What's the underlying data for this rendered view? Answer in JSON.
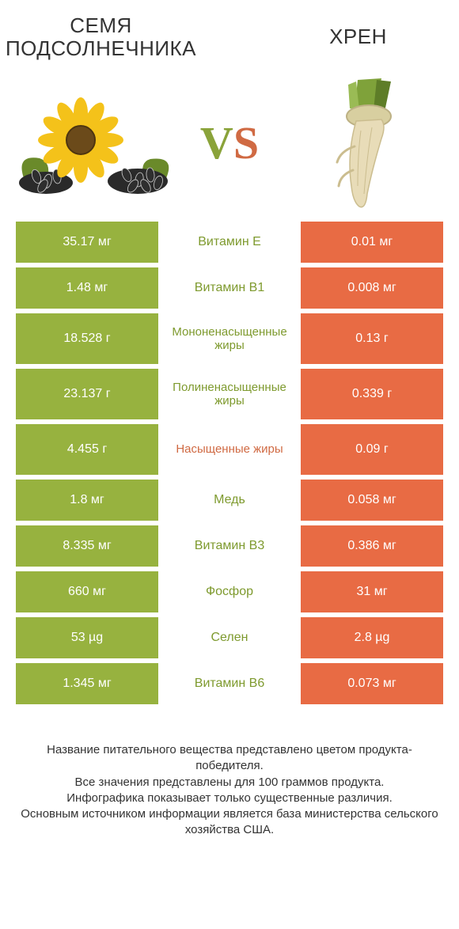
{
  "colors": {
    "green": "#97b23f",
    "orange": "#e86b44",
    "green_text": "#7e9a2e",
    "orange_text": "#d06a43",
    "bg": "#ffffff",
    "white": "#ffffff"
  },
  "header": {
    "left_title": "СЕМЯ\nПОДСОЛНЕЧНИКА",
    "right_title": "ХРЕН",
    "title_fontsize": 26
  },
  "vs": {
    "text_v": "V",
    "text_s": "S",
    "fontsize": 58
  },
  "rows": [
    {
      "left": "35.17 мг",
      "mid": "Витамин E",
      "right": "0.01 мг",
      "winner": "left",
      "tall": false
    },
    {
      "left": "1.48 мг",
      "mid": "Витамин B1",
      "right": "0.008 мг",
      "winner": "left",
      "tall": false
    },
    {
      "left": "18.528 г",
      "mid": "Мононенасыщенные жиры",
      "right": "0.13 г",
      "winner": "left",
      "tall": true
    },
    {
      "left": "23.137 г",
      "mid": "Полиненасыщенные жиры",
      "right": "0.339 г",
      "winner": "left",
      "tall": true
    },
    {
      "left": "4.455 г",
      "mid": "Насыщенные жиры",
      "right": "0.09 г",
      "winner": "right",
      "tall": true
    },
    {
      "left": "1.8 мг",
      "mid": "Медь",
      "right": "0.058 мг",
      "winner": "left",
      "tall": false
    },
    {
      "left": "8.335 мг",
      "mid": "Витамин B3",
      "right": "0.386 мг",
      "winner": "left",
      "tall": false
    },
    {
      "left": "660 мг",
      "mid": "Фосфор",
      "right": "31 мг",
      "winner": "left",
      "tall": false
    },
    {
      "left": "53 µg",
      "mid": "Селен",
      "right": "2.8 µg",
      "winner": "left",
      "tall": false
    },
    {
      "left": "1.345 мг",
      "mid": "Витамин B6",
      "right": "0.073 мг",
      "winner": "left",
      "tall": false
    }
  ],
  "footer": {
    "lines": [
      "Название питательного вещества представлено цветом продукта-победителя.",
      "Все значения представлены для 100 граммов продукта.",
      "Инфографика показывает только существенные различия.",
      "Основным источником информации является база министерства сельского хозяйства США."
    ]
  },
  "illustrations": {
    "sunflower": {
      "petal_color": "#f4c21a",
      "center_color": "#6b4a1a",
      "leaf_color": "#6a8a2a",
      "seed_color": "#2e2e2e",
      "seed_stripe": "#cfcfcf"
    },
    "horseradish": {
      "root_color": "#e8dcb8",
      "root_shadow": "#cbbd8f",
      "top_color": "#7fa23a",
      "top_dark": "#5e7d28"
    }
  }
}
